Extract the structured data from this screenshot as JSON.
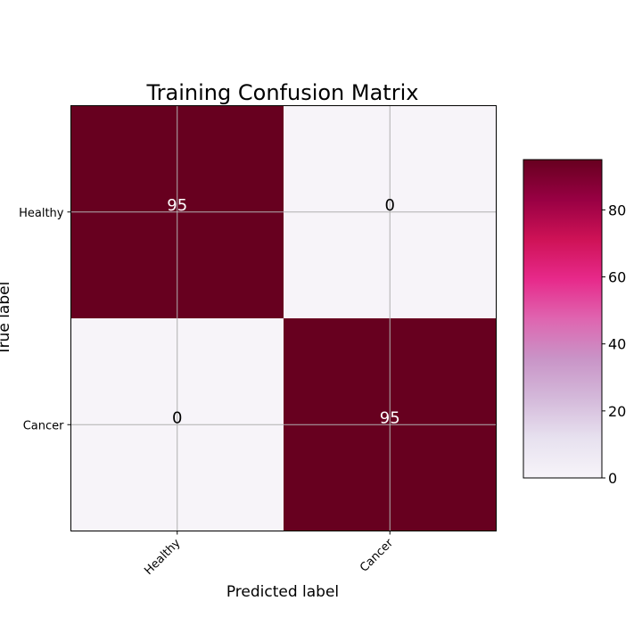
{
  "chart_data": {
    "type": "heatmap",
    "title": "Training Confusion Matrix",
    "xlabel": "Predicted label",
    "ylabel": "True label",
    "x_categories": [
      "Healthy",
      "Cancer"
    ],
    "y_categories": [
      "Healthy",
      "Cancer"
    ],
    "matrix": [
      [
        95,
        0
      ],
      [
        0,
        95
      ]
    ],
    "colormap": "PuRd",
    "colorbar": {
      "min": 0,
      "max": 95,
      "ticks": [
        0,
        20,
        40,
        60,
        80
      ]
    },
    "grid": true,
    "colors": {
      "low": "#f7f4f9",
      "high": "#67001f",
      "text_on_dark": "#ffffff",
      "text_on_light": "#000000",
      "grid": "#b0b0b0"
    }
  }
}
